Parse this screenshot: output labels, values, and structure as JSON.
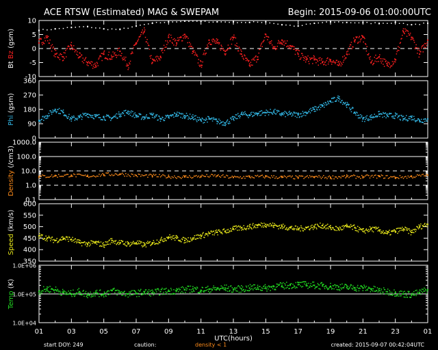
{
  "header": {
    "title": "ACE RTSW (Estimated) MAG & SWEPAM",
    "begin": "Begin: 2015-09-06 01:00:00UTC"
  },
  "footer": {
    "start_doy": "start DOY: 249",
    "caution": "caution:",
    "caution_note": "density < 1",
    "created": "created: 2015-09-07 00:42:04UTC"
  },
  "colors": {
    "background": "#000000",
    "bt": "#ffffff",
    "bz": "#ff2020",
    "phi": "#33b8e6",
    "density": "#ff8c1a",
    "speed": "#e6e61a",
    "temp": "#22dd22",
    "caution": "#ff8c1a"
  },
  "chart_data": {
    "type": "scatter",
    "xlabel": "UTC(hours)",
    "x_ticks": [
      "01",
      "03",
      "05",
      "07",
      "09",
      "11",
      "13",
      "15",
      "17",
      "19",
      "21",
      "23",
      "01"
    ],
    "xlim": [
      1,
      25
    ],
    "panels": [
      {
        "id": "mag",
        "ylabel_parts": [
          {
            "text": "Bt",
            "color": "#ffffff"
          },
          {
            "text": "Bz",
            "color": "#ff2020"
          },
          {
            "text": "(gsm)",
            "color": "#ffffff"
          }
        ],
        "ylim": [
          -10,
          10
        ],
        "scale": "linear",
        "y_ticks": [
          "-10",
          "-5",
          "0",
          "5",
          "10"
        ],
        "dashed_lines": [
          0
        ],
        "series": [
          {
            "name": "Bt",
            "color": "#ffffff",
            "x": [
              1,
              2,
              3,
              4,
              5,
              6,
              7,
              8,
              9,
              10,
              11,
              12,
              13,
              14,
              15,
              16,
              17,
              18,
              19,
              20,
              21,
              22,
              23,
              24,
              25
            ],
            "values": [
              6.5,
              7,
              7.5,
              7.8,
              7,
              6.8,
              8,
              9,
              9.5,
              9.8,
              9.7,
              9.5,
              9.5,
              9.3,
              9.5,
              8.5,
              8,
              9,
              9.5,
              9.3,
              9.2,
              9,
              9.3,
              8.5,
              9
            ]
          },
          {
            "name": "Bz",
            "color": "#ff2020",
            "x": [
              1,
              1.5,
              2,
              2.5,
              3,
              3.5,
              4,
              4.5,
              5,
              5.5,
              6,
              6.5,
              7,
              7.5,
              8,
              8.5,
              9,
              9.5,
              10,
              10.5,
              11,
              11.5,
              12,
              12.5,
              13,
              13.5,
              14,
              14.5,
              15,
              15.5,
              16,
              16.5,
              17,
              17.5,
              18,
              18.5,
              19,
              19.5,
              20,
              20.5,
              21,
              21.5,
              22,
              22.5,
              23,
              23.5,
              24,
              24.5,
              25
            ],
            "values": [
              2,
              4,
              -2,
              -3,
              1,
              -3,
              -5,
              -6,
              -2,
              -3,
              -1,
              -6,
              2,
              6,
              -5,
              -3,
              4,
              2,
              5,
              -1,
              -6,
              3,
              2,
              -1,
              4,
              -2,
              -6,
              -3,
              5,
              0,
              3,
              1,
              -2,
              -4,
              -4,
              -5,
              -4,
              -6,
              -2,
              3,
              4,
              -5,
              -3,
              -6,
              -4,
              6,
              4,
              -2,
              3
            ]
          }
        ]
      },
      {
        "id": "phi",
        "ylabel_parts": [
          {
            "text": "Phi",
            "color": "#33b8e6"
          },
          {
            "text": "(gsm)",
            "color": "#ffffff"
          }
        ],
        "ylim": [
          0,
          360
        ],
        "scale": "linear",
        "y_ticks": [
          "0",
          "90",
          "180",
          "270",
          "360"
        ],
        "dashed_lines": [],
        "series": [
          {
            "name": "Phi",
            "color": "#33b8e6",
            "x": [
              1,
              1.5,
              2,
              2.5,
              3,
              3.5,
              4,
              4.5,
              5,
              5.5,
              6,
              6.5,
              7,
              7.5,
              8,
              8.5,
              9,
              9.5,
              10,
              10.5,
              11,
              11.5,
              12,
              12.5,
              13,
              13.5,
              14,
              14.5,
              15,
              15.5,
              16,
              16.5,
              17,
              17.5,
              18,
              18.5,
              19,
              19.5,
              20,
              20.5,
              21,
              21.5,
              22,
              22.5,
              23,
              23.5,
              24,
              24.5,
              25
            ],
            "values": [
              110,
              140,
              180,
              160,
              120,
              130,
              150,
              135,
              130,
              125,
              150,
              165,
              140,
              130,
              145,
              120,
              130,
              150,
              140,
              130,
              110,
              120,
              105,
              95,
              120,
              150,
              145,
              155,
              160,
              165,
              150,
              150,
              145,
              160,
              180,
              200,
              230,
              250,
              210,
              160,
              120,
              130,
              150,
              140,
              140,
              120,
              130,
              110,
              120
            ]
          }
        ]
      },
      {
        "id": "density",
        "ylabel_parts": [
          {
            "text": "Density",
            "color": "#ff8c1a"
          },
          {
            "text": "(/cm3)",
            "color": "#ffffff"
          }
        ],
        "ylim": [
          0.1,
          1000
        ],
        "scale": "log",
        "y_ticks": [
          "0.1",
          "1.0",
          "10.0",
          "100.0",
          "1000.0"
        ],
        "dashed_lines": [
          1,
          10
        ],
        "solid_lines": [
          100
        ],
        "series": [
          {
            "name": "Density",
            "color": "#ff8c1a",
            "x": [
              1,
              2,
              3,
              4,
              5,
              6,
              7,
              8,
              9,
              10,
              11,
              12,
              13,
              14,
              15,
              16,
              17,
              18,
              19,
              20,
              21,
              22,
              23,
              24,
              25
            ],
            "values": [
              4,
              4.5,
              5,
              4.2,
              5.5,
              6,
              4.8,
              4.5,
              4,
              3.8,
              4.2,
              4.5,
              3.5,
              3.8,
              4,
              3.6,
              3.5,
              3.8,
              3.6,
              4,
              3.9,
              4.1,
              3.5,
              4,
              5
            ]
          }
        ]
      },
      {
        "id": "speed",
        "ylabel_parts": [
          {
            "text": "Speed",
            "color": "#e6e61a"
          },
          {
            "text": "(km/s)",
            "color": "#ffffff"
          }
        ],
        "ylim": [
          350,
          600
        ],
        "scale": "linear",
        "y_ticks": [
          "350",
          "400",
          "450",
          "500",
          "550",
          "600"
        ],
        "dashed_lines": [],
        "series": [
          {
            "name": "Speed",
            "color": "#e6e61a",
            "x": [
              1,
              1.5,
              2,
              2.5,
              3,
              3.5,
              4,
              4.5,
              5,
              5.5,
              6,
              6.5,
              7,
              7.5,
              8,
              8.5,
              9,
              9.5,
              10,
              10.5,
              11,
              11.5,
              12,
              12.5,
              13,
              13.5,
              14,
              14.5,
              15,
              15.5,
              16,
              16.5,
              17,
              17.5,
              18,
              18.5,
              19,
              19.5,
              20,
              20.5,
              21,
              21.5,
              22,
              22.5,
              23,
              23.5,
              24,
              24.5,
              25
            ],
            "values": [
              460,
              450,
              440,
              450,
              445,
              430,
              425,
              430,
              420,
              440,
              430,
              425,
              430,
              420,
              430,
              440,
              455,
              450,
              440,
              450,
              460,
              470,
              475,
              480,
              490,
              495,
              500,
              505,
              510,
              505,
              500,
              495,
              490,
              495,
              500,
              505,
              495,
              490,
              500,
              495,
              480,
              490,
              485,
              470,
              480,
              490,
              475,
              500,
              510
            ]
          }
        ]
      },
      {
        "id": "temp",
        "ylabel_parts": [
          {
            "text": "Temp",
            "color": "#22dd22"
          },
          {
            "text": "(K)",
            "color": "#ffffff"
          }
        ],
        "ylim": [
          10000,
          1000000
        ],
        "scale": "log",
        "y_ticks": [
          "1.0E+04",
          "1.0E+05",
          "1.0E+06"
        ],
        "dashed_lines": [],
        "solid_lines": [
          100000
        ],
        "series": [
          {
            "name": "Temp",
            "color": "#22dd22",
            "x": [
              1,
              1.5,
              2,
              2.5,
              3,
              3.5,
              4,
              4.5,
              5,
              5.5,
              6,
              6.5,
              7,
              7.5,
              8,
              8.5,
              9,
              9.5,
              10,
              10.5,
              11,
              11.5,
              12,
              12.5,
              13,
              13.5,
              14,
              14.5,
              15,
              15.5,
              16,
              16.5,
              17,
              17.5,
              18,
              18.5,
              19,
              19.5,
              20,
              20.5,
              21,
              21.5,
              22,
              22.5,
              23,
              23.5,
              24,
              24.5,
              25
            ],
            "values": [
              120000,
              150000,
              140000,
              110000,
              100000,
              120000,
              95000,
              110000,
              100000,
              130000,
              110000,
              100000,
              105000,
              115000,
              110000,
              120000,
              125000,
              130000,
              140000,
              150000,
              135000,
              145000,
              150000,
              160000,
              145000,
              150000,
              160000,
              170000,
              160000,
              180000,
              190000,
              200000,
              210000,
              205000,
              200000,
              190000,
              185000,
              175000,
              170000,
              165000,
              160000,
              150000,
              130000,
              120000,
              110000,
              100000,
              95000,
              110000,
              140000
            ]
          }
        ]
      }
    ]
  }
}
